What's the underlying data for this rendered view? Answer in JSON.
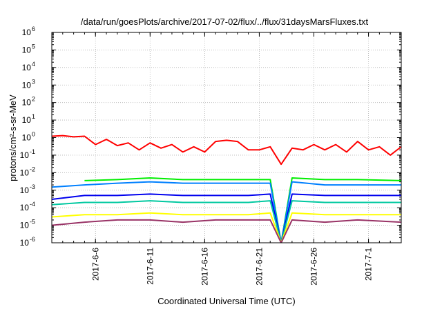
{
  "chart_data": {
    "type": "line",
    "title": "/data/run/goesPlots/archive/2017-07-02/flux/../flux/31daysMarsFluxes.txt",
    "xlabel": "Coordinated Universal Time (UTC)",
    "ylabel": "protons/cm²-s-sr-MeV",
    "y_scale": "log",
    "ylim": [
      1e-06,
      1000000.0
    ],
    "y_tick_exponents": [
      -6,
      -5,
      -4,
      -3,
      -2,
      -1,
      0,
      1,
      2,
      3,
      4,
      5,
      6
    ],
    "xlim": [
      "2017-06-02",
      "2017-07-04"
    ],
    "x_ticks": [
      {
        "date": "2017-06-06",
        "label": "2017-6-6"
      },
      {
        "date": "2017-06-11",
        "label": "2017-6-11"
      },
      {
        "date": "2017-06-16",
        "label": "2017-6-16"
      },
      {
        "date": "2017-06-21",
        "label": "2017-6-21"
      },
      {
        "date": "2017-06-26",
        "label": "2017-6-26"
      },
      {
        "date": "2017-07-01",
        "label": "2017-7-1"
      }
    ],
    "grid": true,
    "series": [
      {
        "color": "#ff0000",
        "points": [
          [
            "2017-06-02",
            1.2
          ],
          [
            "2017-06-03",
            1.3
          ],
          [
            "2017-06-04",
            1.1
          ],
          [
            "2017-06-05",
            1.2
          ],
          [
            "2017-06-06",
            0.4
          ],
          [
            "2017-06-07",
            0.8
          ],
          [
            "2017-06-08",
            0.35
          ],
          [
            "2017-06-09",
            0.5
          ],
          [
            "2017-06-10",
            0.2
          ],
          [
            "2017-06-11",
            0.5
          ],
          [
            "2017-06-12",
            0.25
          ],
          [
            "2017-06-13",
            0.4
          ],
          [
            "2017-06-14",
            0.15
          ],
          [
            "2017-06-15",
            0.3
          ],
          [
            "2017-06-16",
            0.15
          ],
          [
            "2017-06-17",
            0.6
          ],
          [
            "2017-06-18",
            0.7
          ],
          [
            "2017-06-19",
            0.6
          ],
          [
            "2017-06-20",
            0.2
          ],
          [
            "2017-06-21",
            0.2
          ],
          [
            "2017-06-22",
            0.3
          ],
          [
            "2017-06-23",
            0.03
          ],
          [
            "2017-06-24",
            0.25
          ],
          [
            "2017-06-25",
            0.2
          ],
          [
            "2017-06-26",
            0.4
          ],
          [
            "2017-06-27",
            0.2
          ],
          [
            "2017-06-28",
            0.4
          ],
          [
            "2017-06-29",
            0.15
          ],
          [
            "2017-06-30",
            0.6
          ],
          [
            "2017-07-01",
            0.2
          ],
          [
            "2017-07-02",
            0.3
          ],
          [
            "2017-07-03",
            0.1
          ],
          [
            "2017-07-04",
            0.3
          ]
        ]
      },
      {
        "color": "#00ee00",
        "points": [
          [
            "2017-06-05",
            0.0035
          ],
          [
            "2017-06-08",
            0.004
          ],
          [
            "2017-06-11",
            0.005
          ],
          [
            "2017-06-14",
            0.004
          ],
          [
            "2017-06-17",
            0.004
          ],
          [
            "2017-06-20",
            0.004
          ],
          [
            "2017-06-22",
            0.004
          ],
          [
            "2017-06-23",
            1e-06
          ],
          [
            "2017-06-24",
            0.005
          ],
          [
            "2017-06-27",
            0.004
          ],
          [
            "2017-06-30",
            0.004
          ],
          [
            "2017-07-04",
            0.0035
          ]
        ]
      },
      {
        "color": "#0080ff",
        "points": [
          [
            "2017-06-02",
            0.0015
          ],
          [
            "2017-06-05",
            0.002
          ],
          [
            "2017-06-08",
            0.0025
          ],
          [
            "2017-06-11",
            0.003
          ],
          [
            "2017-06-14",
            0.0025
          ],
          [
            "2017-06-17",
            0.0025
          ],
          [
            "2017-06-20",
            0.0025
          ],
          [
            "2017-06-22",
            0.0025
          ],
          [
            "2017-06-23",
            1e-06
          ],
          [
            "2017-06-24",
            0.003
          ],
          [
            "2017-06-27",
            0.002
          ],
          [
            "2017-06-30",
            0.002
          ],
          [
            "2017-07-04",
            0.002
          ]
        ]
      },
      {
        "color": "#0000ee",
        "points": [
          [
            "2017-06-02",
            0.0003
          ],
          [
            "2017-06-05",
            0.0005
          ],
          [
            "2017-06-08",
            0.0005
          ],
          [
            "2017-06-11",
            0.0006
          ],
          [
            "2017-06-14",
            0.0005
          ],
          [
            "2017-06-17",
            0.0005
          ],
          [
            "2017-06-20",
            0.0005
          ],
          [
            "2017-06-22",
            0.0006
          ],
          [
            "2017-06-23",
            1e-06
          ],
          [
            "2017-06-24",
            0.0006
          ],
          [
            "2017-06-27",
            0.0005
          ],
          [
            "2017-06-30",
            0.0005
          ],
          [
            "2017-07-04",
            0.0005
          ]
        ]
      },
      {
        "color": "#00c8a0",
        "points": [
          [
            "2017-06-02",
            0.00015
          ],
          [
            "2017-06-05",
            0.0002
          ],
          [
            "2017-06-08",
            0.0002
          ],
          [
            "2017-06-11",
            0.00025
          ],
          [
            "2017-06-14",
            0.0002
          ],
          [
            "2017-06-17",
            0.0002
          ],
          [
            "2017-06-20",
            0.0002
          ],
          [
            "2017-06-22",
            0.00025
          ],
          [
            "2017-06-23",
            1e-06
          ],
          [
            "2017-06-24",
            0.00025
          ],
          [
            "2017-06-27",
            0.0002
          ],
          [
            "2017-06-30",
            0.0002
          ],
          [
            "2017-07-04",
            0.0002
          ]
        ]
      },
      {
        "color": "#ffff00",
        "points": [
          [
            "2017-06-02",
            3e-05
          ],
          [
            "2017-06-05",
            4e-05
          ],
          [
            "2017-06-08",
            4e-05
          ],
          [
            "2017-06-11",
            5e-05
          ],
          [
            "2017-06-14",
            4e-05
          ],
          [
            "2017-06-17",
            4e-05
          ],
          [
            "2017-06-20",
            4e-05
          ],
          [
            "2017-06-22",
            5e-05
          ],
          [
            "2017-06-23",
            1e-06
          ],
          [
            "2017-06-24",
            5e-05
          ],
          [
            "2017-06-27",
            4e-05
          ],
          [
            "2017-06-30",
            4e-05
          ],
          [
            "2017-07-04",
            4e-05
          ]
        ]
      },
      {
        "color": "#993366",
        "points": [
          [
            "2017-06-02",
            1e-05
          ],
          [
            "2017-06-05",
            1.5e-05
          ],
          [
            "2017-06-08",
            2e-05
          ],
          [
            "2017-06-11",
            2e-05
          ],
          [
            "2017-06-14",
            1.5e-05
          ],
          [
            "2017-06-17",
            2e-05
          ],
          [
            "2017-06-20",
            2e-05
          ],
          [
            "2017-06-22",
            2e-05
          ],
          [
            "2017-06-23",
            1e-06
          ],
          [
            "2017-06-24",
            2e-05
          ],
          [
            "2017-06-27",
            1.5e-05
          ],
          [
            "2017-06-30",
            2e-05
          ],
          [
            "2017-07-04",
            1.5e-05
          ]
        ]
      }
    ]
  }
}
